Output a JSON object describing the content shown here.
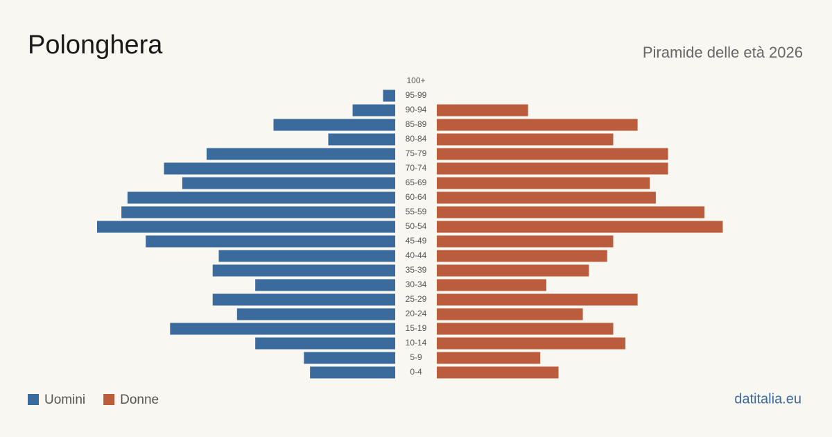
{
  "chart_data": {
    "type": "pyramid",
    "title": "Polonghera",
    "subtitle": "Piramide delle età 2026",
    "categories": [
      "100+",
      "95-99",
      "90-94",
      "85-89",
      "80-84",
      "75-79",
      "70-74",
      "65-69",
      "60-64",
      "55-59",
      "50-54",
      "45-49",
      "40-44",
      "35-39",
      "30-34",
      "25-29",
      "20-24",
      "15-19",
      "10-14",
      "5-9",
      "0-4"
    ],
    "series": [
      {
        "name": "Uomini",
        "color": "#3b6a9c",
        "values": [
          0,
          2,
          7,
          20,
          11,
          31,
          38,
          35,
          44,
          45,
          49,
          41,
          29,
          30,
          23,
          30,
          26,
          37,
          23,
          15,
          14
        ]
      },
      {
        "name": "Donne",
        "color": "#bb5d3c",
        "values": [
          0,
          0,
          15,
          33,
          29,
          38,
          38,
          35,
          36,
          44,
          47,
          29,
          28,
          25,
          18,
          33,
          24,
          29,
          31,
          17,
          20
        ]
      }
    ],
    "xlim": [
      0,
      49
    ],
    "source": "datitalia.eu"
  }
}
